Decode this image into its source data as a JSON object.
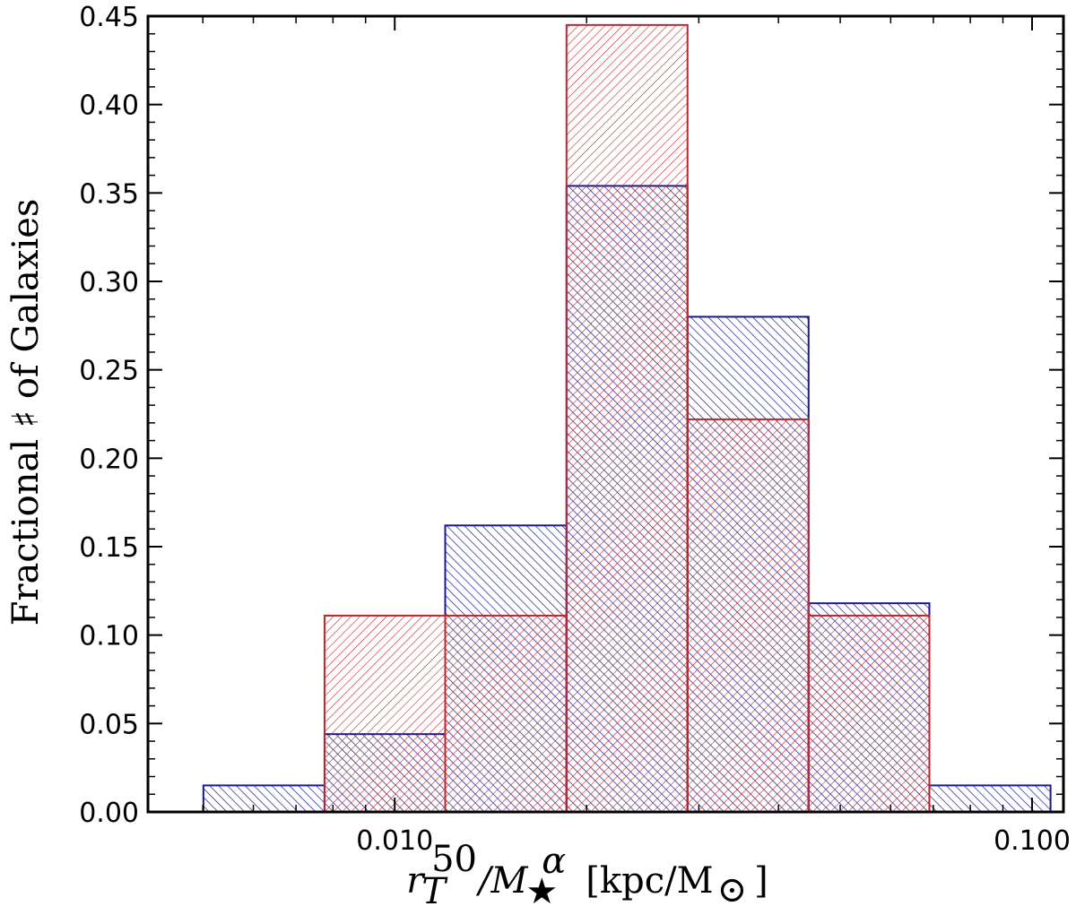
{
  "chart_data": {
    "type": "histogram",
    "x_scale": "log",
    "xlim": [
      0.0041,
      0.112
    ],
    "ylim": [
      0,
      0.45
    ],
    "x_ticks": [
      {
        "value": 0.01,
        "label": "0.010"
      },
      {
        "value": 0.1,
        "label": "0.100"
      }
    ],
    "y_ticks": [
      {
        "value": 0.0,
        "label": "0.00"
      },
      {
        "value": 0.05,
        "label": "0.05"
      },
      {
        "value": 0.1,
        "label": "0.10"
      },
      {
        "value": 0.15,
        "label": "0.15"
      },
      {
        "value": 0.2,
        "label": "0.20"
      },
      {
        "value": 0.25,
        "label": "0.25"
      },
      {
        "value": 0.3,
        "label": "0.30"
      },
      {
        "value": 0.35,
        "label": "0.35"
      },
      {
        "value": 0.4,
        "label": "0.40"
      },
      {
        "value": 0.45,
        "label": "0.45"
      }
    ],
    "xlabel": {
      "main": "r",
      "sub": "T",
      "sup": "50",
      "over": "/M",
      "over_sub": "★",
      "over_sup": "α",
      "units": "[kpc/M",
      "units_sub": "⊙",
      "units_close": "]"
    },
    "ylabel": "Fractional ♯ of Galaxies",
    "bin_edges": [
      0.00501,
      0.00776,
      0.012,
      0.0186,
      0.0288,
      0.0446,
      0.069,
      0.1069
    ],
    "series": [
      {
        "color": "#1a1a8c",
        "hatch": "backslash",
        "values": [
          0.015,
          0.044,
          0.162,
          0.354,
          0.28,
          0.118,
          0.015
        ]
      },
      {
        "color": "#c0272d",
        "hatch": "slash",
        "values": [
          0.0,
          0.111,
          0.111,
          0.445,
          0.222,
          0.111,
          0.0
        ]
      }
    ],
    "grid": false,
    "legend": "none"
  }
}
